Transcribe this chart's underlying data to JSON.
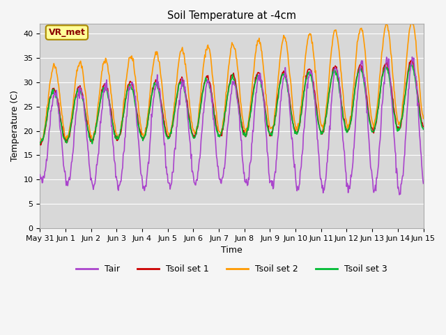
{
  "title": "Soil Temperature at -4cm",
  "xlabel": "Time",
  "ylabel": "Temperature (C)",
  "ylim": [
    0,
    42
  ],
  "yticks": [
    0,
    5,
    10,
    15,
    20,
    25,
    30,
    35,
    40
  ],
  "bg_color": "#d8d8d8",
  "fig_color": "#f5f5f5",
  "annotation_text": "VR_met",
  "annotation_bg": "#ffff99",
  "annotation_edge": "#aa8800",
  "annotation_text_color": "#8B0000",
  "color_tair": "#aa44cc",
  "color_tsoil1": "#cc0000",
  "color_tsoil2": "#ff9900",
  "color_tsoil3": "#00bb33",
  "line_width": 1.2,
  "xtick_labels": [
    "May 31",
    "Jun 1",
    "Jun 2",
    "Jun 3",
    "Jun 4",
    "Jun 5",
    "Jun 6",
    "Jun 7",
    "Jun 8",
    "Jun 9",
    "Jun 10",
    "Jun 11",
    "Jun 12",
    "Jun 13",
    "Jun 14",
    "Jun 15"
  ],
  "n_days": 15,
  "points_per_day": 48
}
